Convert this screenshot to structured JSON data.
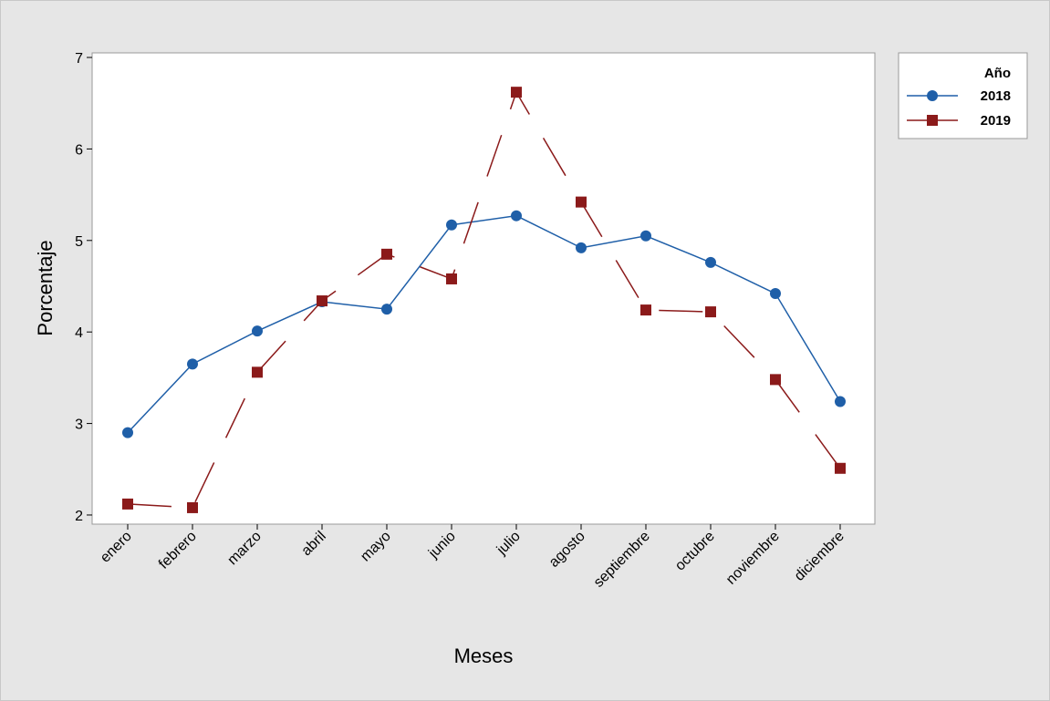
{
  "chart_data": {
    "type": "line",
    "title": "",
    "xlabel": "Meses",
    "ylabel": "Porcentaje",
    "categories": [
      "enero",
      "febrero",
      "marzo",
      "abril",
      "mayo",
      "junio",
      "julio",
      "agosto",
      "septiembre",
      "octubre",
      "noviembre",
      "diciembre"
    ],
    "ylim": [
      1.9,
      7.05
    ],
    "yticks": [
      2,
      3,
      4,
      5,
      6,
      7
    ],
    "grid": false,
    "legend": {
      "title": "Año",
      "position": "top-right outside"
    },
    "series": [
      {
        "name": "2018",
        "color": "#1f5fa8",
        "marker": "circle",
        "line": "solid",
        "values": [
          2.9,
          3.65,
          4.01,
          4.33,
          4.25,
          5.17,
          5.27,
          4.92,
          5.05,
          4.76,
          4.42,
          3.24
        ]
      },
      {
        "name": "2019",
        "color": "#8b1a1a",
        "marker": "square",
        "line": "dashed",
        "values": [
          2.12,
          2.08,
          3.56,
          4.34,
          4.85,
          4.58,
          6.62,
          5.42,
          4.24,
          4.22,
          3.48,
          2.51
        ]
      }
    ]
  }
}
